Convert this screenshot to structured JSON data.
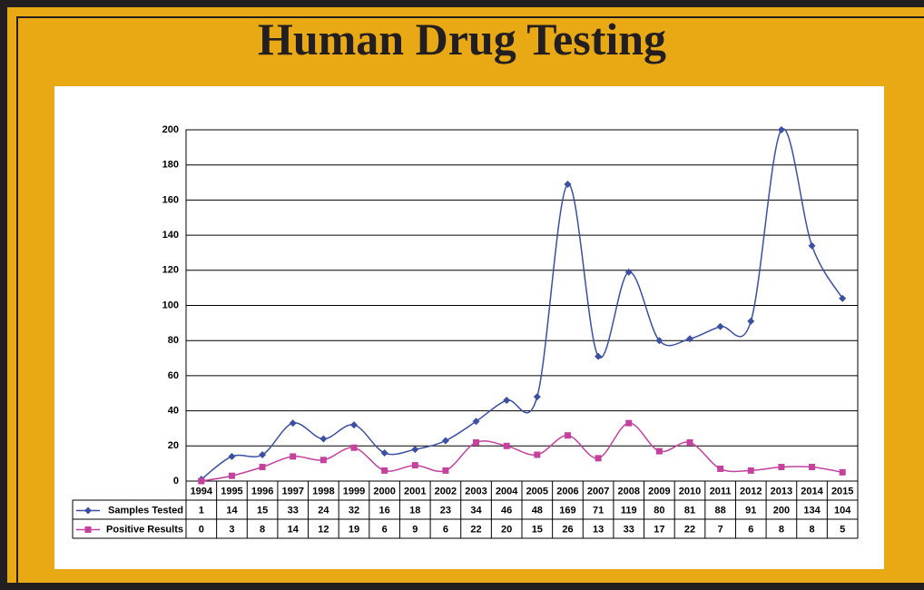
{
  "chart_data": {
    "type": "line",
    "title": "Human Drug Testing",
    "categories": [
      "1994",
      "1995",
      "1996",
      "1997",
      "1998",
      "1999",
      "2000",
      "2001",
      "2002",
      "2003",
      "2004",
      "2005",
      "2006",
      "2007",
      "2008",
      "2009",
      "2010",
      "2011",
      "2012",
      "2013",
      "2014",
      "2015"
    ],
    "series": [
      {
        "name": "Samples Tested",
        "color": "#3b4fa3",
        "marker": "diamond",
        "values": [
          1,
          14,
          15,
          33,
          24,
          32,
          16,
          18,
          23,
          34,
          46,
          48,
          169,
          71,
          119,
          80,
          81,
          88,
          91,
          200,
          134,
          104
        ]
      },
      {
        "name": "Positive Results",
        "color": "#c4429e",
        "marker": "square",
        "values": [
          0,
          3,
          8,
          14,
          12,
          19,
          6,
          9,
          6,
          22,
          20,
          15,
          26,
          13,
          33,
          17,
          22,
          7,
          6,
          8,
          8,
          5
        ]
      }
    ],
    "ylim": [
      0,
      200
    ],
    "yticks": [
      0,
      20,
      40,
      60,
      80,
      100,
      120,
      140,
      160,
      180,
      200
    ],
    "grid": true,
    "smooth": true
  }
}
